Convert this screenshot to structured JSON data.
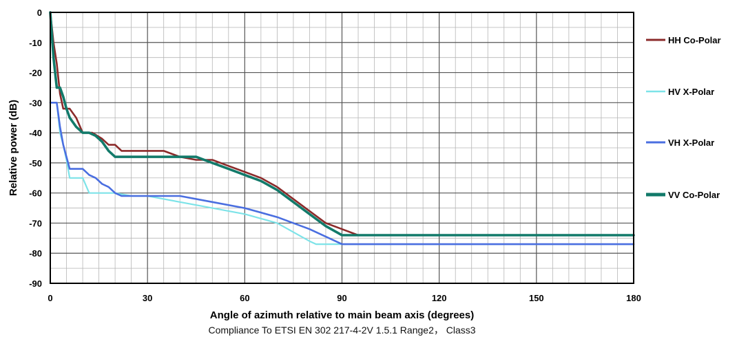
{
  "chart_data": {
    "type": "line",
    "title": "",
    "xlabel": "Angle of azimuth relative to main beam axis (degrees)",
    "ylabel": "Relative power (dB)",
    "caption": "Compliance To ETSI EN 302 217-4-2V 1.5.1 Range2， Class3",
    "xlim": [
      0,
      180
    ],
    "ylim": [
      -90,
      0
    ],
    "x_ticks": [
      0,
      30,
      60,
      90,
      120,
      150,
      180
    ],
    "y_ticks": [
      0,
      -10,
      -20,
      -30,
      -40,
      -50,
      -60,
      -70,
      -80,
      -90
    ],
    "x_minor_step": 5,
    "y_minor_step": 5,
    "grid": true,
    "legend_position": "right",
    "series": [
      {
        "name": "HH Co-Polar",
        "color": "#8b2a2a",
        "x": [
          0,
          1,
          2,
          3,
          4,
          6,
          8,
          10,
          13,
          16,
          18,
          20,
          22,
          25,
          30,
          35,
          40,
          45,
          50,
          55,
          60,
          65,
          70,
          75,
          80,
          85,
          90,
          95,
          100,
          110,
          120,
          130,
          140,
          150,
          160,
          170,
          180
        ],
        "y": [
          0,
          -10,
          -17,
          -27,
          -32,
          -32,
          -35,
          -40,
          -40,
          -42,
          -44,
          -44,
          -46,
          -46,
          -46,
          -46,
          -48,
          -49,
          -49,
          -51,
          -53,
          -55,
          -58,
          -62,
          -66,
          -70,
          -72,
          -74,
          -74,
          -74,
          -74,
          -74,
          -74,
          -74,
          -74,
          -74,
          -74
        ]
      },
      {
        "name": "HV X-Polar",
        "color": "#7de3e8",
        "x": [
          0,
          1,
          2,
          3,
          4,
          5,
          6,
          7,
          8,
          10,
          12,
          14,
          18,
          20,
          25,
          30,
          40,
          50,
          60,
          70,
          75,
          80,
          82,
          85,
          90,
          95,
          100,
          110,
          120,
          130,
          140,
          150,
          160,
          170,
          180
        ],
        "y": [
          -30,
          -30,
          -30,
          -40,
          -44,
          -49,
          -55,
          -55,
          -55,
          -55,
          -60,
          -60,
          -60,
          -60,
          -61,
          -61,
          -63,
          -65,
          -67,
          -70,
          -73,
          -76,
          -77,
          -77,
          -77,
          -77,
          -77,
          -77,
          -77,
          -77,
          -77,
          -77,
          -77,
          -77,
          -77
        ]
      },
      {
        "name": "VH X-Polar",
        "color": "#4a6ee0",
        "x": [
          0,
          1,
          2,
          3,
          4,
          5,
          6,
          8,
          10,
          12,
          14,
          16,
          18,
          20,
          22,
          25,
          30,
          40,
          50,
          60,
          70,
          80,
          90,
          95,
          100,
          110,
          120,
          130,
          140,
          150,
          160,
          170,
          180
        ],
        "y": [
          -30,
          -30,
          -30,
          -38,
          -44,
          -48,
          -52,
          -52,
          -52,
          -54,
          -55,
          -57,
          -58,
          -60,
          -61,
          -61,
          -61,
          -61,
          -63,
          -65,
          -68,
          -72,
          -77,
          -77,
          -77,
          -77,
          -77,
          -77,
          -77,
          -77,
          -77,
          -77,
          -77
        ]
      },
      {
        "name": "VV Co-Polar",
        "color": "#127a6a",
        "x": [
          0,
          1,
          2,
          3,
          4,
          5,
          6,
          8,
          10,
          12,
          14,
          16,
          18,
          20,
          25,
          30,
          35,
          40,
          45,
          50,
          55,
          60,
          65,
          70,
          75,
          80,
          85,
          90,
          95,
          100,
          110,
          120,
          130,
          140,
          150,
          160,
          170,
          180
        ],
        "y": [
          0,
          -15,
          -25,
          -25,
          -28,
          -32,
          -35,
          -38,
          -40,
          -40,
          -41,
          -43,
          -46,
          -48,
          -48,
          -48,
          -48,
          -48,
          -48,
          -50,
          -52,
          -54,
          -56,
          -59,
          -63,
          -67,
          -71,
          -74,
          -74,
          -74,
          -74,
          -74,
          -74,
          -74,
          -74,
          -74,
          -74,
          -74
        ]
      }
    ]
  }
}
